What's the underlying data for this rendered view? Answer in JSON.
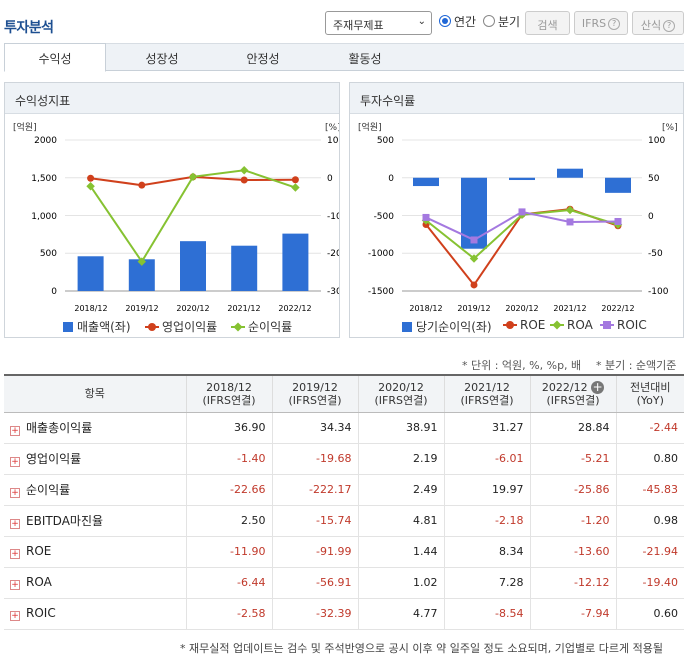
{
  "header": {
    "title": "투자분석",
    "report_select": "주재무제표",
    "period_annual": "연간",
    "period_quarter": "분기",
    "search_label": "검색",
    "ifrs_label": "IFRS",
    "formula_label": "산식",
    "help_glyph": "?"
  },
  "tabs": [
    {
      "label": "수익성",
      "active": true
    },
    {
      "label": "성장성",
      "active": false
    },
    {
      "label": "안정성",
      "active": false
    },
    {
      "label": "활동성",
      "active": false
    }
  ],
  "left_panel": {
    "title": "수익성지표",
    "left_unit": "[억원]",
    "right_unit": "[%]",
    "legend": [
      "매출액(좌)",
      "영업이익률",
      "순이익률"
    ]
  },
  "right_panel": {
    "title": "투자수익률",
    "left_unit": "[억원]",
    "right_unit": "[%]",
    "legend": [
      "당기순이익(좌)",
      "ROE",
      "ROA",
      "ROIC"
    ]
  },
  "chart_data": [
    {
      "type": "bar+line",
      "title": "수익성지표",
      "categories": [
        "2018/12",
        "2019/12",
        "2020/12",
        "2021/12",
        "2022/12"
      ],
      "left_axis": {
        "ticks": [
          "2000",
          "1,500",
          "1,000",
          "500",
          "0"
        ],
        "range": [
          0,
          2000
        ]
      },
      "right_axis": {
        "ticks": [
          "100",
          "0",
          "-100",
          "-200",
          "-300"
        ],
        "range": [
          -300,
          100
        ]
      },
      "bars": {
        "name": "매출액(좌)",
        "values": [
          460,
          420,
          660,
          600,
          760
        ],
        "color": "#2e6fd4"
      },
      "lines": [
        {
          "name": "영업이익률",
          "values": [
            -1.4,
            -19.68,
            2.19,
            -6.01,
            -5.21
          ],
          "color": "#d0401c"
        },
        {
          "name": "순이익률",
          "values": [
            -22.66,
            -222.17,
            2.49,
            19.97,
            -25.86
          ],
          "color": "#86c232"
        }
      ]
    },
    {
      "type": "bar+line",
      "title": "투자수익률",
      "categories": [
        "2018/12",
        "2019/12",
        "2020/12",
        "2021/12",
        "2022/12"
      ],
      "left_axis": {
        "ticks": [
          "500",
          "0",
          "-500",
          "-1000",
          "-1500"
        ],
        "range": [
          -1500,
          500
        ]
      },
      "right_axis": {
        "ticks": [
          "100",
          "50",
          "0",
          "-50",
          "-100"
        ],
        "range": [
          -100,
          100
        ]
      },
      "bars": {
        "name": "당기순이익(좌)",
        "values": [
          -110,
          -940,
          -30,
          120,
          -200
        ],
        "color": "#2e6fd4"
      },
      "lines": [
        {
          "name": "ROE",
          "values": [
            -11.9,
            -91.99,
            1.44,
            8.34,
            -13.6
          ],
          "color": "#d0401c"
        },
        {
          "name": "ROA",
          "values": [
            -6.44,
            -56.91,
            1.02,
            7.28,
            -12.12
          ],
          "color": "#86c232"
        },
        {
          "name": "ROIC",
          "values": [
            -2.58,
            -32.39,
            4.77,
            -8.54,
            -7.94
          ],
          "color": "#a479e0"
        }
      ]
    }
  ],
  "note": {
    "unit": "* 단위 : 억원, %, %p, 배",
    "quarter": "* 분기 : 순액기준"
  },
  "table": {
    "headers": [
      {
        "line1": "항목",
        "line2": ""
      },
      {
        "line1": "2018/12",
        "line2": "(IFRS연결)"
      },
      {
        "line1": "2019/12",
        "line2": "(IFRS연결)"
      },
      {
        "line1": "2020/12",
        "line2": "(IFRS연결)"
      },
      {
        "line1": "2021/12",
        "line2": "(IFRS연결)"
      },
      {
        "line1": "2022/12",
        "line2": "(IFRS연결)"
      },
      {
        "line1": "전년대비",
        "line2": "(YoY)"
      }
    ],
    "rows": [
      {
        "label": "매출총이익률",
        "values": [
          "36.90",
          "34.34",
          "38.91",
          "31.27",
          "28.84",
          "-2.44"
        ]
      },
      {
        "label": "영업이익률",
        "values": [
          "-1.40",
          "-19.68",
          "2.19",
          "-6.01",
          "-5.21",
          "0.80"
        ]
      },
      {
        "label": "순이익률",
        "values": [
          "-22.66",
          "-222.17",
          "2.49",
          "19.97",
          "-25.86",
          "-45.83"
        ]
      },
      {
        "label": "EBITDA마진율",
        "values": [
          "2.50",
          "-15.74",
          "4.81",
          "-2.18",
          "-1.20",
          "0.98"
        ]
      },
      {
        "label": "ROE",
        "values": [
          "-11.90",
          "-91.99",
          "1.44",
          "8.34",
          "-13.60",
          "-21.94"
        ]
      },
      {
        "label": "ROA",
        "values": [
          "-6.44",
          "-56.91",
          "1.02",
          "7.28",
          "-12.12",
          "-19.40"
        ]
      },
      {
        "label": "ROIC",
        "values": [
          "-2.58",
          "-32.39",
          "4.77",
          "-8.54",
          "-7.94",
          "0.60"
        ]
      }
    ]
  },
  "footer": "* 재무실적 업데이트는 검수 및 주석반영으로 공시 이후 약 일주일 정도 소요되며, 기업별로 다르게 적용될"
}
